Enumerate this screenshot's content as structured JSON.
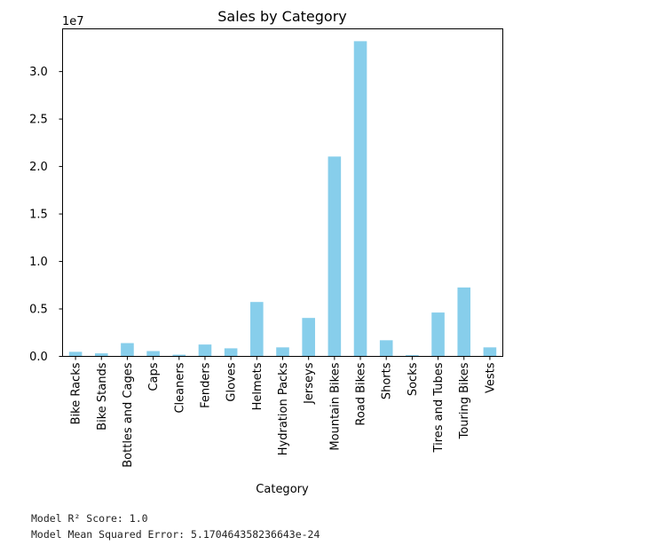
{
  "chart_data": {
    "type": "bar",
    "title": "Sales by Category",
    "xlabel": "Category",
    "ylabel": "",
    "y_offset_label": "1e7",
    "ylim": [
      0,
      34500000
    ],
    "yticks": [
      0,
      5000000,
      10000000,
      15000000,
      20000000,
      25000000,
      30000000
    ],
    "ytick_labels": [
      "0.0",
      "0.5",
      "1.0",
      "1.5",
      "2.0",
      "2.5",
      "3.0"
    ],
    "grid": false,
    "bar_color": "#87ceeb",
    "categories": [
      "Bike Racks",
      "Bike Stands",
      "Bottles and Cages",
      "Caps",
      "Cleaners",
      "Fenders",
      "Gloves",
      "Helmets",
      "Hydration Packs",
      "Jerseys",
      "Mountain Bikes",
      "Road Bikes",
      "Shorts",
      "Socks",
      "Tires and Tubes",
      "Touring Bikes",
      "Vests"
    ],
    "values": [
      480000,
      320000,
      1400000,
      560000,
      180000,
      1250000,
      850000,
      5730000,
      950000,
      4050000,
      21050000,
      33200000,
      1700000,
      130000,
      4620000,
      7260000,
      950000
    ]
  },
  "output": {
    "r2_line": "Model R² Score: 1.0",
    "mse_line": "Model Mean Squared Error: 5.170464358236643e-24"
  }
}
